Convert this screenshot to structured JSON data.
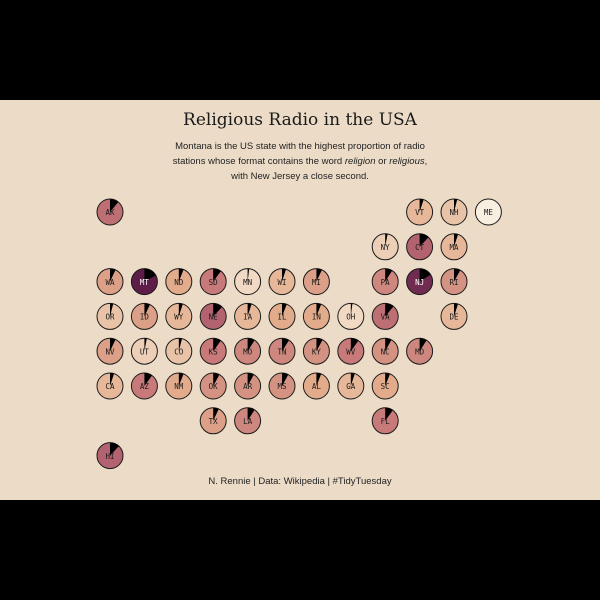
{
  "title": "Religious Radio in the USA",
  "subtitle": {
    "line1": "Montana is  the US state with the highest proportion of radio",
    "line2_a": "stations whose format contains the word ",
    "line2_em1": "religion",
    "line2_b": " or ",
    "line2_em2": "religious",
    "line2_c": ",",
    "line3": "with New Jersey a close second."
  },
  "caption": "N. Rennie | Data: Wikipedia | #TidyTuesday",
  "colors": {
    "background": "#ecdcc7",
    "frame": "#000000",
    "slice": "#000000",
    "scale_low": "#f8efe0",
    "scale_mid_low": "#e2ad8c",
    "scale_mid": "#c67878",
    "scale_mid_high": "#a95a6b",
    "scale_high": "#5e1d48"
  },
  "chart_data": {
    "type": "tile-grid pie map",
    "description_of_value": "proportion of radio stations with religion/religious format",
    "states": [
      {
        "abbr": "AK",
        "row": 0,
        "col": 0,
        "value": 0.11
      },
      {
        "abbr": "VT",
        "row": 0,
        "col": 9,
        "value": 0.05
      },
      {
        "abbr": "NH",
        "row": 0,
        "col": 10,
        "value": 0.04
      },
      {
        "abbr": "ME",
        "row": 0,
        "col": 11,
        "value": 0.0
      },
      {
        "abbr": "NY",
        "row": 1,
        "col": 8,
        "value": 0.03
      },
      {
        "abbr": "CT",
        "row": 1,
        "col": 9,
        "value": 0.12
      },
      {
        "abbr": "MA",
        "row": 1,
        "col": 10,
        "value": 0.05
      },
      {
        "abbr": "WA",
        "row": 2,
        "col": 0,
        "value": 0.07
      },
      {
        "abbr": "MT",
        "row": 2,
        "col": 1,
        "value": 0.17
      },
      {
        "abbr": "ND",
        "row": 2,
        "col": 2,
        "value": 0.06
      },
      {
        "abbr": "SD",
        "row": 2,
        "col": 3,
        "value": 0.1
      },
      {
        "abbr": "MN",
        "row": 2,
        "col": 4,
        "value": 0.02
      },
      {
        "abbr": "WI",
        "row": 2,
        "col": 5,
        "value": 0.05
      },
      {
        "abbr": "MI",
        "row": 2,
        "col": 6,
        "value": 0.07
      },
      {
        "abbr": "PA",
        "row": 2,
        "col": 8,
        "value": 0.09
      },
      {
        "abbr": "NJ",
        "row": 2,
        "col": 9,
        "value": 0.16
      },
      {
        "abbr": "RI",
        "row": 2,
        "col": 10,
        "value": 0.08
      },
      {
        "abbr": "OR",
        "row": 3,
        "col": 0,
        "value": 0.04
      },
      {
        "abbr": "ID",
        "row": 3,
        "col": 1,
        "value": 0.07
      },
      {
        "abbr": "WY",
        "row": 3,
        "col": 2,
        "value": 0.05
      },
      {
        "abbr": "NE",
        "row": 3,
        "col": 3,
        "value": 0.12
      },
      {
        "abbr": "IA",
        "row": 3,
        "col": 4,
        "value": 0.05
      },
      {
        "abbr": "IL",
        "row": 3,
        "col": 5,
        "value": 0.06
      },
      {
        "abbr": "IN",
        "row": 3,
        "col": 6,
        "value": 0.06
      },
      {
        "abbr": "OH",
        "row": 3,
        "col": 7,
        "value": 0.02
      },
      {
        "abbr": "VA",
        "row": 3,
        "col": 8,
        "value": 0.11
      },
      {
        "abbr": "DE",
        "row": 3,
        "col": 10,
        "value": 0.05
      },
      {
        "abbr": "NV",
        "row": 4,
        "col": 0,
        "value": 0.07
      },
      {
        "abbr": "UT",
        "row": 4,
        "col": 1,
        "value": 0.03
      },
      {
        "abbr": "CO",
        "row": 4,
        "col": 2,
        "value": 0.04
      },
      {
        "abbr": "KS",
        "row": 4,
        "col": 3,
        "value": 0.1
      },
      {
        "abbr": "MO",
        "row": 4,
        "col": 4,
        "value": 0.09
      },
      {
        "abbr": "TN",
        "row": 4,
        "col": 5,
        "value": 0.09
      },
      {
        "abbr": "KY",
        "row": 4,
        "col": 6,
        "value": 0.08
      },
      {
        "abbr": "WV",
        "row": 4,
        "col": 7,
        "value": 0.1
      },
      {
        "abbr": "NC",
        "row": 4,
        "col": 8,
        "value": 0.08
      },
      {
        "abbr": "MD",
        "row": 4,
        "col": 9,
        "value": 0.09
      },
      {
        "abbr": "CA",
        "row": 5,
        "col": 0,
        "value": 0.05
      },
      {
        "abbr": "AZ",
        "row": 5,
        "col": 1,
        "value": 0.1
      },
      {
        "abbr": "NM",
        "row": 5,
        "col": 2,
        "value": 0.06
      },
      {
        "abbr": "OK",
        "row": 5,
        "col": 3,
        "value": 0.08
      },
      {
        "abbr": "AR",
        "row": 5,
        "col": 4,
        "value": 0.08
      },
      {
        "abbr": "MS",
        "row": 5,
        "col": 5,
        "value": 0.08
      },
      {
        "abbr": "AL",
        "row": 5,
        "col": 6,
        "value": 0.06
      },
      {
        "abbr": "GA",
        "row": 5,
        "col": 7,
        "value": 0.05
      },
      {
        "abbr": "SC",
        "row": 5,
        "col": 8,
        "value": 0.06
      },
      {
        "abbr": "TX",
        "row": 6,
        "col": 3,
        "value": 0.07
      },
      {
        "abbr": "LA",
        "row": 6,
        "col": 4,
        "value": 0.09
      },
      {
        "abbr": "FL",
        "row": 6,
        "col": 8,
        "value": 0.1
      },
      {
        "abbr": "HI",
        "row": 7,
        "col": 0,
        "value": 0.12
      }
    ]
  }
}
